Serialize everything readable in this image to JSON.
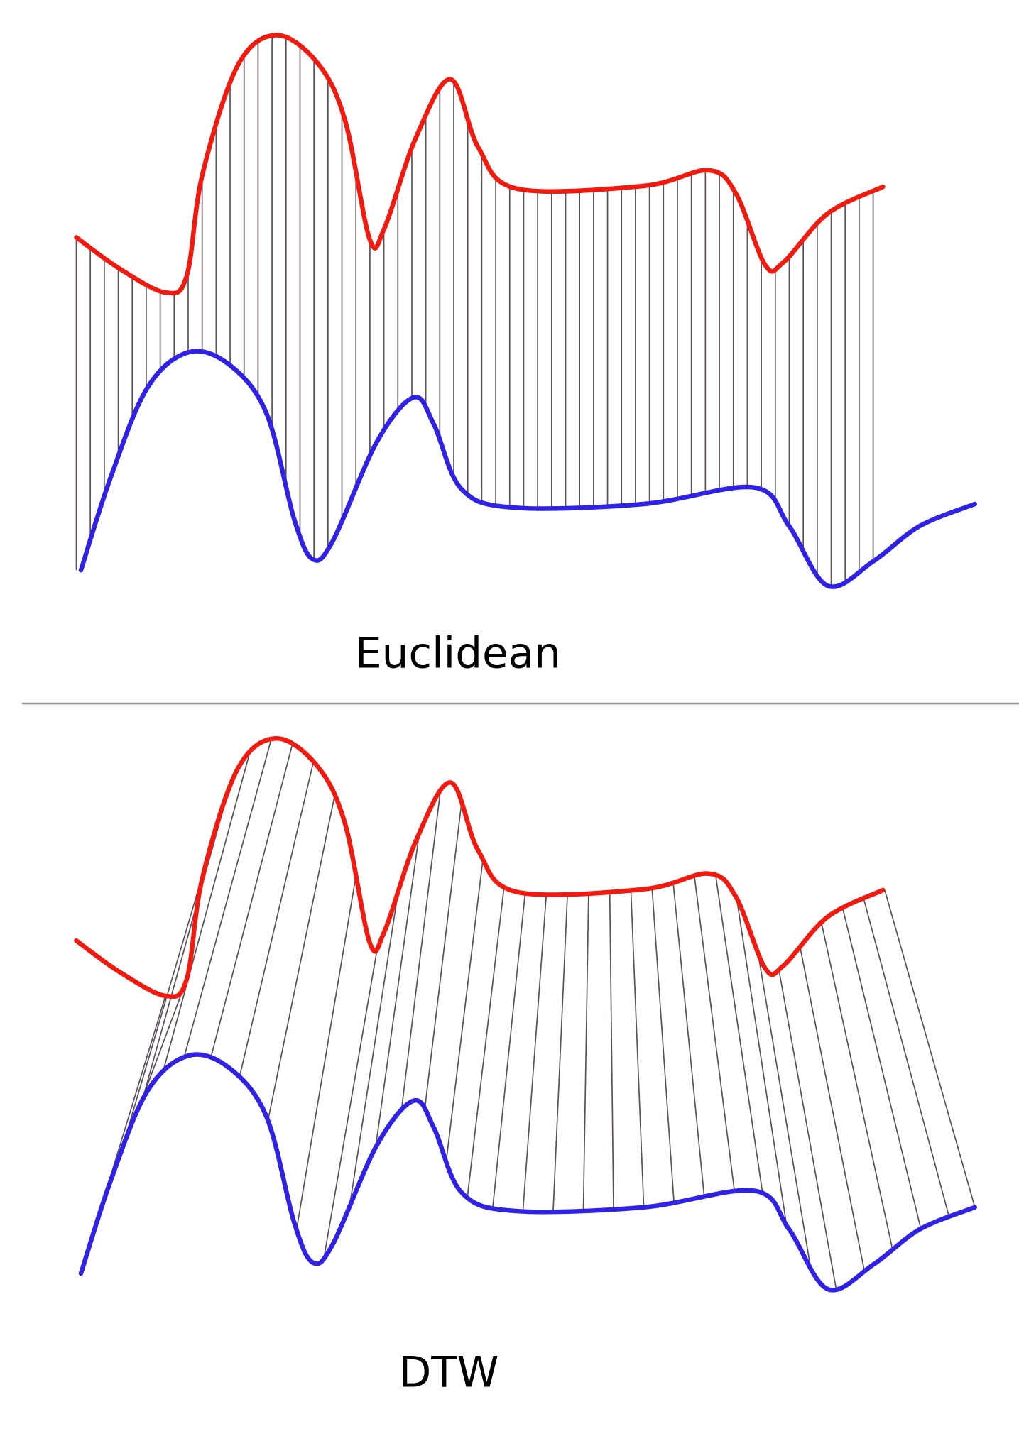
{
  "panels": [
    {
      "label": "Euclidean"
    },
    {
      "label": "DTW"
    }
  ]
}
